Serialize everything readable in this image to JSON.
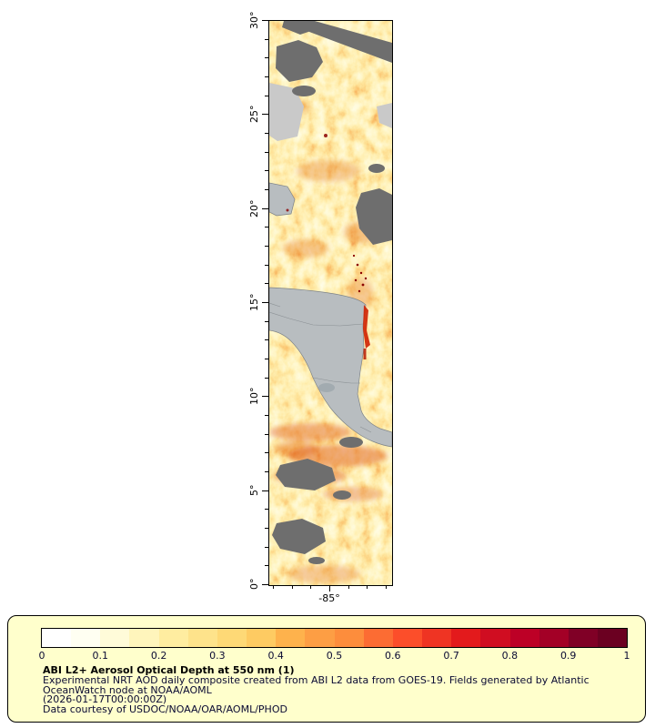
{
  "map": {
    "x_axis_label": "-85°",
    "y_axis_labels": [
      "30°",
      "25°",
      "20°",
      "15°",
      "10°",
      "5°",
      "0°"
    ],
    "colors": {
      "land": "#b8bdc0",
      "cloud_missing": "#6e6e6e",
      "no_data": "#c9c9c9",
      "high_aod_accent": "#cf2000"
    }
  },
  "legend": {
    "background": "#ffffcc",
    "border": "#000000",
    "tick_labels": [
      "0",
      "0.1",
      "0.2",
      "0.3",
      "0.4",
      "0.5",
      "0.6",
      "0.7",
      "0.8",
      "0.9",
      "1"
    ],
    "colormap": [
      "#ffffff",
      "#fffff2",
      "#fffbd9",
      "#fff5bc",
      "#ffeda0",
      "#fee38b",
      "#fed976",
      "#fecb62",
      "#feb24c",
      "#fd9e44",
      "#fd8d3c",
      "#fc6c33",
      "#fc4e2a",
      "#ef3423",
      "#e31a1c",
      "#d00d21",
      "#bd0026",
      "#a30026",
      "#800026",
      "#6b0021"
    ],
    "title": "ABI L2+ Aerosol Optical Depth at 550 nm (1)",
    "description_lines": [
      "Experimental NRT AOD daily composite created from ABI L2 data from GOES-19. Fields generated by Atlantic",
      "OceanWatch node at NOAA/AOML",
      "(2026-01-17T00:00:00Z)",
      "Data courtesy of USDOC/NOAA/OAR/AOML/PHOD"
    ]
  }
}
